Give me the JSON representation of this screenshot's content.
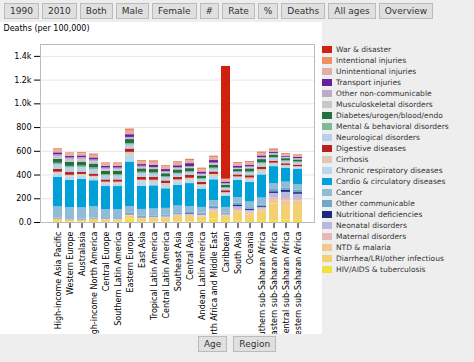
{
  "chart_data": {
    "type": "bar",
    "stacked": true,
    "grid": true,
    "legend": "right",
    "ylabel": "Deaths (per 100,000)",
    "ylim": [
      0,
      1500
    ],
    "yticks": [
      {
        "value": 0,
        "label": "0.0"
      },
      200,
      400,
      600,
      800,
      {
        "value": 1000,
        "label": "1.0k"
      },
      {
        "value": 1200,
        "label": "1.2k"
      },
      {
        "value": 1400,
        "label": "1.4k"
      }
    ],
    "annotations": [
      "1990",
      "2010",
      "Both",
      "Male",
      "Female",
      "#",
      "Rate",
      "%",
      "Deaths",
      "All ages",
      "Overview",
      "Age",
      "Region"
    ],
    "categories": [
      "High-income\nAsia Pacific",
      "Western\nEurope",
      "Australasia",
      "High-income\nNorth America",
      "Central\nEurope",
      "Southern\nLatin America",
      "Eastern\nEurope",
      "East\nAsia",
      "Tropical\nLatin America",
      "Central\nLatin America",
      "Southeast\nAsia",
      "Central\nAsia",
      "Andean\nLatin America",
      "North Africa and\nMiddle East",
      "Caribbean",
      "South\nAsia",
      "Oceania",
      "Southern\nsub-Saharan\nAfrica",
      "Eastern\nsub-Saharan\nAfrica",
      "Central\nsub-Saharan\nAfrica",
      "Western\nsub-Saharan\nAfrica"
    ],
    "series": [
      {
        "name": "HIV/AIDS & tuberculosis",
        "color": "#f0e040",
        "values": [
          10,
          5,
          5,
          8,
          5,
          5,
          30,
          5,
          5,
          5,
          5,
          5,
          10,
          30,
          15,
          12,
          8,
          15,
          15,
          20,
          18
        ]
      },
      {
        "name": "Diarrhea/LRI/other infectious",
        "color": "#f5d070",
        "values": [
          15,
          15,
          12,
          18,
          15,
          15,
          25,
          25,
          28,
          28,
          45,
          45,
          35,
          55,
          35,
          75,
          55,
          75,
          140,
          115,
          125
        ]
      },
      {
        "name": "NTD & malaria",
        "color": "#f0c890",
        "values": [
          2,
          1,
          1,
          1,
          2,
          2,
          4,
          4,
          5,
          7,
          8,
          9,
          9,
          14,
          7,
          14,
          18,
          18,
          38,
          48,
          38
        ]
      },
      {
        "name": "Maternal disorders",
        "color": "#e8b8b8",
        "values": [
          1,
          1,
          1,
          1,
          1,
          1,
          2,
          2,
          2,
          3,
          3,
          3,
          3,
          5,
          3,
          9,
          7,
          5,
          14,
          19,
          14
        ]
      },
      {
        "name": "Neonatal disorders",
        "color": "#b8b8e0",
        "values": [
          2,
          2,
          2,
          2,
          3,
          3,
          4,
          4,
          5,
          7,
          8,
          9,
          8,
          14,
          7,
          24,
          14,
          14,
          38,
          52,
          43
        ]
      },
      {
        "name": "Nutritional deficiencies",
        "color": "#1a2a80",
        "values": [
          2,
          2,
          2,
          2,
          2,
          2,
          3,
          3,
          3,
          3,
          3,
          5,
          5,
          5,
          3,
          9,
          9,
          7,
          14,
          19,
          14
        ]
      },
      {
        "name": "Other communicable",
        "color": "#70a8cc",
        "values": [
          5,
          5,
          5,
          5,
          5,
          5,
          9,
          9,
          8,
          8,
          9,
          9,
          9,
          14,
          9,
          19,
          14,
          14,
          19,
          19,
          19
        ]
      },
      {
        "name": "Cancer",
        "color": "#90bcd8",
        "values": [
          95,
          95,
          95,
          95,
          75,
          75,
          58,
          58,
          58,
          58,
          58,
          48,
          48,
          48,
          48,
          48,
          48,
          58,
          48,
          48,
          48
        ]
      },
      {
        "name": "Cardio & circulatory diseases",
        "color": "#00a0d8",
        "values": [
          250,
          230,
          240,
          220,
          195,
          195,
          375,
          195,
          195,
          165,
          175,
          195,
          155,
          175,
          95,
          145,
          165,
          195,
          145,
          118,
          128
        ]
      },
      {
        "name": "Chronic respiratory diseases",
        "color": "#b8d8f0",
        "values": [
          28,
          28,
          28,
          23,
          23,
          23,
          58,
          38,
          28,
          28,
          28,
          28,
          23,
          28,
          18,
          18,
          23,
          28,
          18,
          14,
          14
        ]
      },
      {
        "name": "Cirrhosis",
        "color": "#e0c8b0",
        "values": [
          14,
          14,
          14,
          14,
          14,
          14,
          23,
          14,
          19,
          17,
          17,
          17,
          14,
          17,
          11,
          11,
          14,
          17,
          11,
          9,
          9
        ]
      },
      {
        "name": "Digestive diseases",
        "color": "#b82020",
        "values": [
          23,
          23,
          19,
          19,
          19,
          19,
          28,
          23,
          23,
          21,
          21,
          23,
          19,
          21,
          17,
          17,
          19,
          21,
          17,
          14,
          14
        ]
      },
      {
        "name": "Neurological disorders",
        "color": "#b8d0e8",
        "values": [
          38,
          38,
          38,
          38,
          33,
          33,
          33,
          33,
          28,
          26,
          26,
          23,
          23,
          23,
          19,
          19,
          23,
          26,
          23,
          19,
          19
        ]
      },
      {
        "name": "Mental & behavioral disorders",
        "color": "#80b898",
        "values": [
          14,
          14,
          14,
          14,
          11,
          11,
          14,
          11,
          11,
          9,
          9,
          9,
          8,
          9,
          7,
          7,
          9,
          9,
          8,
          7,
          7
        ]
      },
      {
        "name": "Diabetes/urogen/blood/endo",
        "color": "#207040",
        "values": [
          33,
          33,
          33,
          33,
          28,
          28,
          33,
          28,
          28,
          26,
          28,
          26,
          23,
          26,
          21,
          19,
          26,
          28,
          21,
          17,
          17
        ]
      },
      {
        "name": "Musculoskeletal disorders",
        "color": "#c8c8c8",
        "values": [
          19,
          19,
          19,
          17,
          14,
          14,
          9,
          11,
          9,
          9,
          9,
          8,
          8,
          8,
          5,
          5,
          8,
          8,
          5,
          5,
          5
        ]
      },
      {
        "name": "Other non-communicable",
        "color": "#c0a8c8",
        "values": [
          19,
          19,
          19,
          17,
          14,
          14,
          9,
          11,
          9,
          9,
          9,
          8,
          8,
          9,
          7,
          7,
          9,
          9,
          8,
          7,
          7
        ]
      },
      {
        "name": "Transport injuries",
        "color": "#6820a0",
        "values": [
          17,
          14,
          14,
          17,
          14,
          14,
          23,
          14,
          19,
          17,
          17,
          26,
          17,
          21,
          14,
          17,
          14,
          14,
          11,
          9,
          9
        ]
      },
      {
        "name": "Unintentional injuries",
        "color": "#e0b0a8",
        "values": [
          23,
          19,
          19,
          21,
          19,
          19,
          28,
          23,
          23,
          21,
          21,
          23,
          21,
          23,
          17,
          19,
          19,
          19,
          14,
          11,
          11
        ]
      },
      {
        "name": "Intentional injuries",
        "color": "#f09060",
        "values": [
          9,
          8,
          8,
          9,
          8,
          8,
          14,
          9,
          9,
          8,
          9,
          9,
          8,
          9,
          7,
          8,
          9,
          9,
          8,
          7,
          7
        ]
      },
      {
        "name": "War & disaster",
        "color": "#d02010",
        "values": [
          2,
          2,
          2,
          2,
          2,
          2,
          4,
          2,
          3,
          3,
          3,
          4,
          3,
          4,
          950,
          3,
          3,
          3,
          3,
          3,
          3
        ]
      }
    ]
  }
}
